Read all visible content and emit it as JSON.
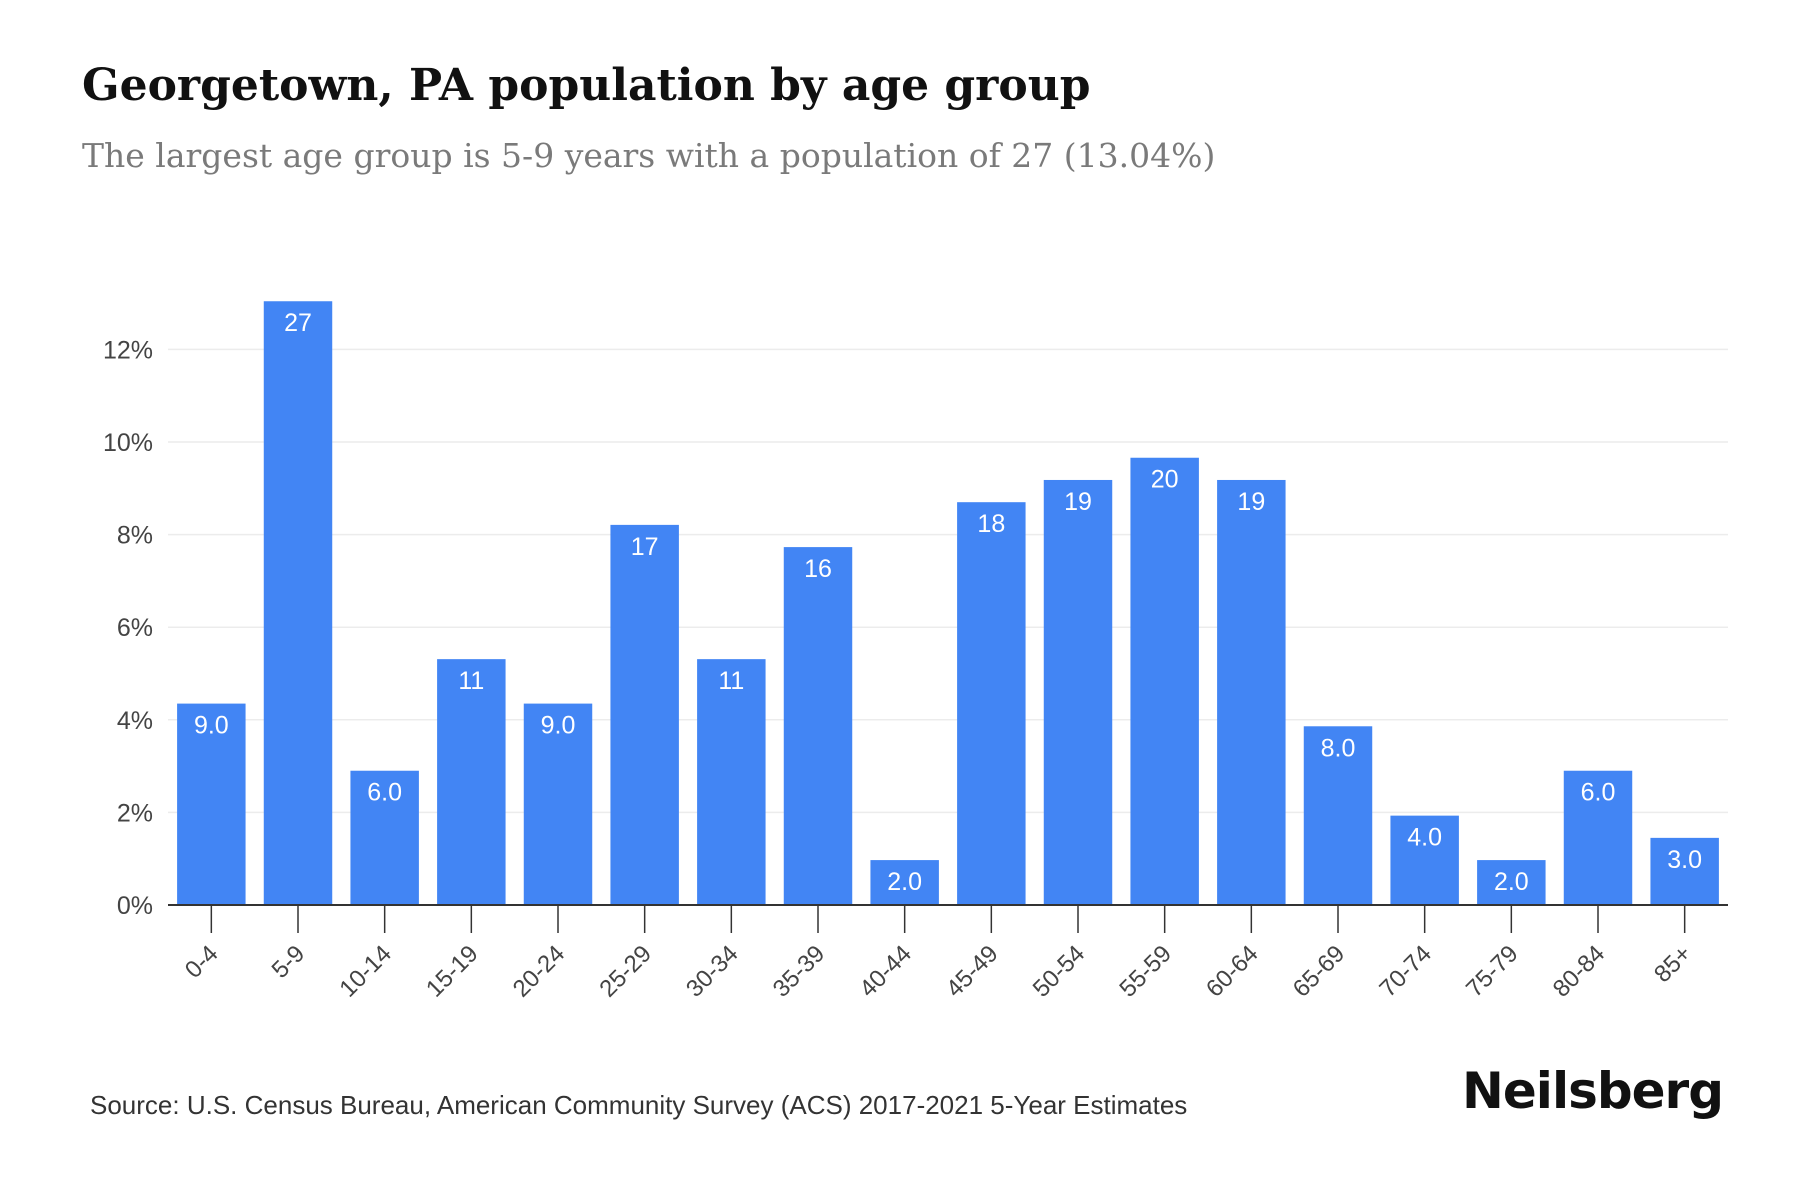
{
  "header": {
    "title": "Georgetown, PA population by age group",
    "subtitle": "The largest age group is 5-9 years with a population of 27 (13.04%)"
  },
  "footer": {
    "source": "Source: U.S. Census Bureau, American Community Survey (ACS) 2017-2021 5-Year Estimates",
    "brand": "Neilsberg"
  },
  "colors": {
    "bar": "#4285f4",
    "bar_label": "#ffffff",
    "grid": "#ececec",
    "axis": "#333333",
    "tick_text": "#444444"
  },
  "chart_data": {
    "type": "bar",
    "categories": [
      "0-4",
      "5-9",
      "10-14",
      "15-19",
      "20-24",
      "25-29",
      "30-34",
      "35-39",
      "40-44",
      "45-49",
      "50-54",
      "55-59",
      "60-64",
      "65-69",
      "70-74",
      "75-79",
      "80-84",
      "85+"
    ],
    "values": [
      4.35,
      13.04,
      2.9,
      5.31,
      4.35,
      8.21,
      5.31,
      7.73,
      0.97,
      8.7,
      9.18,
      9.66,
      9.18,
      3.86,
      1.93,
      0.97,
      2.9,
      1.45
    ],
    "data_labels": [
      "9.0",
      "27",
      "6.0",
      "11",
      "9.0",
      "17",
      "11",
      "16",
      "2.0",
      "18",
      "19",
      "20",
      "19",
      "8.0",
      "4.0",
      "2.0",
      "6.0",
      "3.0"
    ],
    "yticks": [
      "0%",
      "2%",
      "4%",
      "6%",
      "8%",
      "10%",
      "12%"
    ],
    "ytick_values": [
      0,
      2,
      4,
      6,
      8,
      10,
      12
    ],
    "ylim": [
      0,
      14
    ],
    "xlabel": "",
    "ylabel": "",
    "grid": true,
    "legend": false
  }
}
